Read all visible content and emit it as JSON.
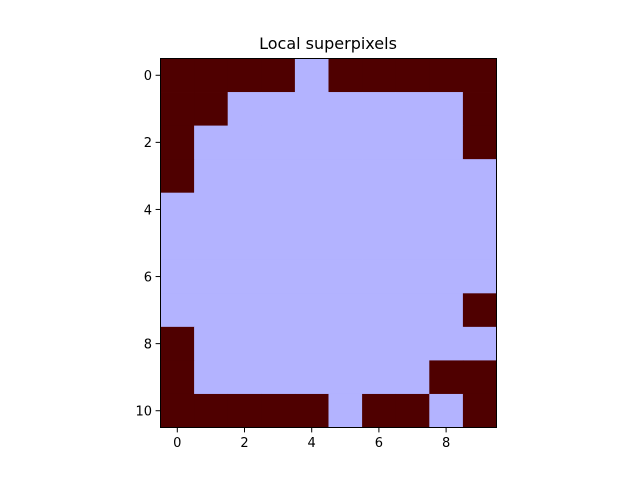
{
  "chart_data": {
    "type": "heatmap",
    "title": "Local superpixels",
    "xlabel": "",
    "ylabel": "",
    "n_cols": 10,
    "n_rows": 11,
    "xlim": [
      -0.5,
      9.5
    ],
    "ylim": [
      10.5,
      -0.5
    ],
    "x_ticks": [
      0,
      2,
      4,
      6,
      8
    ],
    "y_ticks": [
      0,
      2,
      4,
      6,
      8,
      10
    ],
    "grid": false,
    "colors": {
      "0": "#4f0000",
      "1": "#b3b3ff"
    },
    "matrix": [
      [
        0,
        0,
        0,
        0,
        1,
        0,
        0,
        0,
        0,
        0
      ],
      [
        0,
        0,
        1,
        1,
        1,
        1,
        1,
        1,
        1,
        0
      ],
      [
        0,
        1,
        1,
        1,
        1,
        1,
        1,
        1,
        1,
        0
      ],
      [
        0,
        1,
        1,
        1,
        1,
        1,
        1,
        1,
        1,
        1
      ],
      [
        1,
        1,
        1,
        1,
        1,
        1,
        1,
        1,
        1,
        1
      ],
      [
        1,
        1,
        1,
        1,
        1,
        1,
        1,
        1,
        1,
        1
      ],
      [
        1,
        1,
        1,
        1,
        1,
        1,
        1,
        1,
        1,
        1
      ],
      [
        1,
        1,
        1,
        1,
        1,
        1,
        1,
        1,
        1,
        0
      ],
      [
        0,
        1,
        1,
        1,
        1,
        1,
        1,
        1,
        1,
        1
      ],
      [
        0,
        1,
        1,
        1,
        1,
        1,
        1,
        1,
        0,
        0
      ],
      [
        0,
        0,
        0,
        0,
        0,
        1,
        0,
        0,
        1,
        0
      ]
    ]
  }
}
